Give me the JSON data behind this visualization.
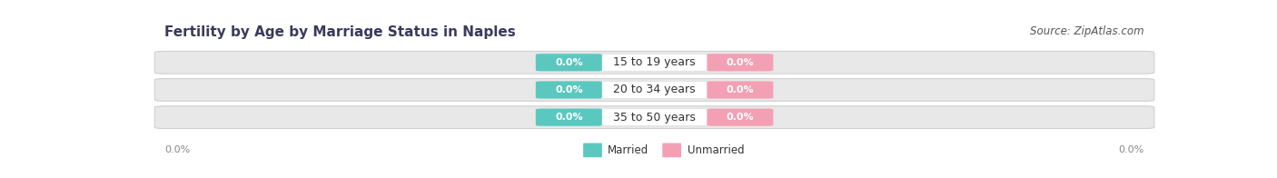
{
  "title": "Fertility by Age by Marriage Status in Naples",
  "source": "Source: ZipAtlas.com",
  "categories": [
    "15 to 19 years",
    "20 to 34 years",
    "35 to 50 years"
  ],
  "married_values": [
    0.0,
    0.0,
    0.0
  ],
  "unmarried_values": [
    0.0,
    0.0,
    0.0
  ],
  "married_color": "#5bc8c0",
  "unmarried_color": "#f4a0b4",
  "bar_face_color": "#e8e8e8",
  "label_bg_color": "#ffffff",
  "title_fontsize": 11,
  "source_fontsize": 8.5,
  "badge_fontsize": 8,
  "cat_fontsize": 9,
  "axis_fontsize": 8,
  "legend_fontsize": 8.5,
  "axis_label_value_left": "0.0%",
  "axis_label_value_right": "0.0%",
  "legend_married": "Married",
  "legend_unmarried": "Unmarried",
  "background_color": "#ffffff",
  "title_color": "#3a3a5c",
  "source_color": "#555555",
  "bar_edge_color": "#d0d0d0",
  "cat_text_color": "#333333",
  "axis_text_color": "#888888"
}
